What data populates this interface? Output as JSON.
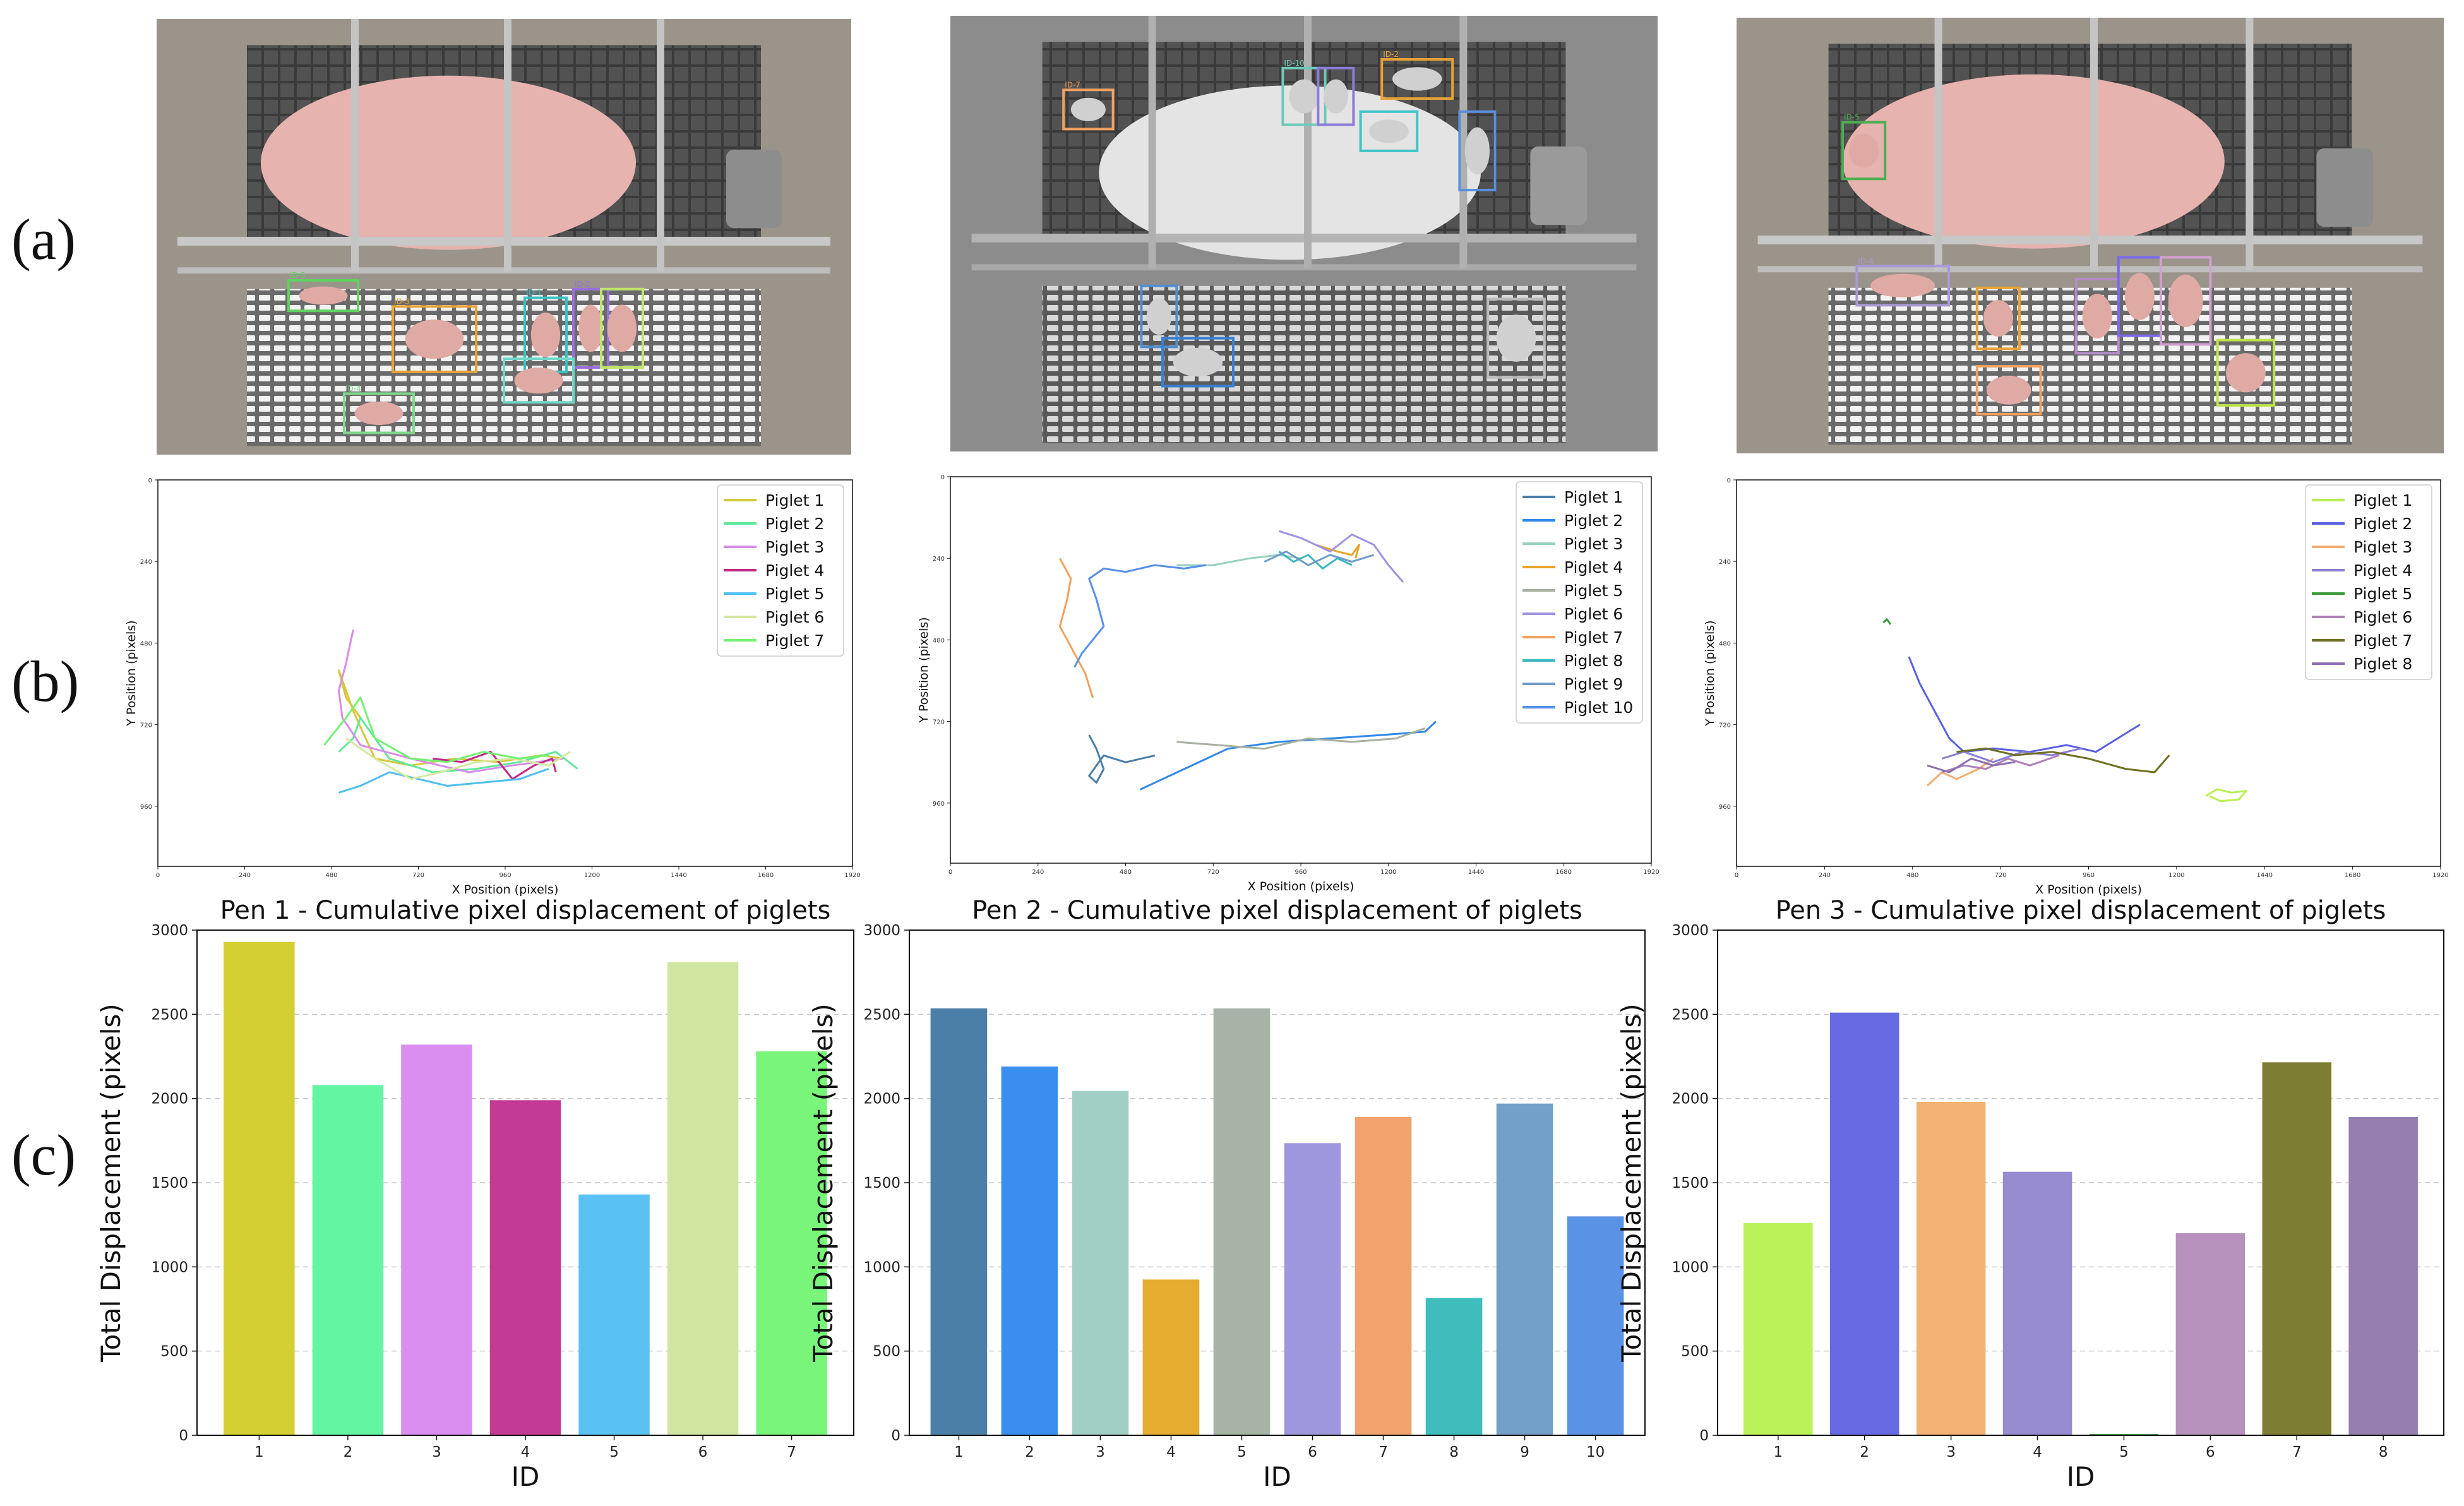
{
  "row_labels": {
    "a": "(a)",
    "b": "(b)",
    "c": "(c)"
  },
  "pens": [
    {
      "photo": {
        "style": "color",
        "detection_labels": [
          "ID-5",
          "ID-3",
          "ID-4",
          "ID-1",
          "ID-2"
        ],
        "box_colors": [
          "#5fd35f",
          "#e8a235",
          "#7ed88a",
          "#36c2c2",
          "#9b6fe0",
          "#c0e36a",
          "#6fd8c8"
        ]
      }
    },
    {
      "photo": {
        "style": "grayscale",
        "detection_labels": [
          "ID-7",
          "ID-2",
          "ID-10"
        ],
        "box_colors": [
          "#f0a060",
          "#e8a235",
          "#6fc9b9",
          "#8c7cd8",
          "#3ec3c8",
          "#5a8fe0",
          "#4f8fd0",
          "#3a7fd0",
          "#bbbbbb"
        ]
      }
    },
    {
      "photo": {
        "style": "color",
        "detection_labels": [
          "ID-5",
          "ID-4"
        ],
        "box_colors": [
          "#4caf50",
          "#a89ad6",
          "#e8a235",
          "#b58cc8",
          "#7b68ee",
          "#d2a0d0",
          "#bfe34a",
          "#f0a060"
        ]
      }
    }
  ],
  "trajectory_axes": {
    "xlabel": "X Position (pixels)",
    "ylabel": "Y Position (pixels)",
    "xticks": [
      "0",
      "240",
      "480",
      "720",
      "960",
      "1200",
      "1440",
      "1680",
      "1920"
    ],
    "yticks": [
      "0",
      "240",
      "480",
      "720",
      "960"
    ],
    "xlim": [
      0,
      1920
    ],
    "ylim": [
      1080,
      0
    ]
  },
  "chart_data": [
    {
      "type": "line",
      "panel": "(b) pen 1",
      "series": [
        {
          "name": "Piglet 1",
          "color": "#d4c83a",
          "x": [
            560,
            520,
            500,
            540,
            600,
            700,
            820,
            940,
            1060,
            1120
          ],
          "y": [
            700,
            640,
            560,
            680,
            820,
            840,
            820,
            830,
            810,
            820
          ]
        },
        {
          "name": "Piglet 2",
          "color": "#5fe89a",
          "x": [
            500,
            540,
            560,
            640,
            760,
            880,
            1000,
            1100,
            1160
          ],
          "y": [
            800,
            760,
            700,
            820,
            860,
            850,
            830,
            800,
            850
          ]
        },
        {
          "name": "Piglet 3",
          "color": "#d98be8",
          "x": [
            540,
            520,
            500,
            510,
            560,
            700,
            860,
            980,
            1120
          ],
          "y": [
            440,
            540,
            620,
            700,
            780,
            820,
            860,
            840,
            820
          ]
        },
        {
          "name": "Piglet 4",
          "color": "#c02a8a",
          "x": [
            760,
            840,
            920,
            980,
            1040,
            1090,
            1100
          ],
          "y": [
            820,
            830,
            800,
            880,
            840,
            820,
            860
          ]
        },
        {
          "name": "Piglet 5",
          "color": "#4fbfef",
          "x": [
            500,
            560,
            640,
            720,
            800,
            900,
            1000,
            1080
          ],
          "y": [
            920,
            900,
            860,
            880,
            900,
            890,
            880,
            850
          ]
        },
        {
          "name": "Piglet 6",
          "color": "#d4e8a0",
          "x": [
            520,
            600,
            700,
            780,
            880,
            980,
            1080,
            1140
          ],
          "y": [
            760,
            820,
            880,
            860,
            830,
            820,
            840,
            800
          ]
        },
        {
          "name": "Piglet 7",
          "color": "#74f074",
          "x": [
            460,
            520,
            560,
            600,
            700,
            800,
            900,
            1000,
            1080
          ],
          "y": [
            780,
            700,
            640,
            760,
            820,
            830,
            800,
            820,
            810
          ]
        }
      ]
    },
    {
      "type": "line",
      "panel": "(b) pen 2",
      "series": [
        {
          "name": "Piglet 1",
          "color": "#4a7fa8",
          "x": [
            380,
            400,
            420,
            400,
            380,
            420,
            480,
            560
          ],
          "y": [
            760,
            800,
            860,
            900,
            880,
            820,
            840,
            820
          ]
        },
        {
          "name": "Piglet 2",
          "color": "#2f88e8",
          "x": [
            520,
            640,
            760,
            900,
            1040,
            1180,
            1300,
            1330
          ],
          "y": [
            920,
            860,
            800,
            780,
            770,
            760,
            750,
            720
          ]
        },
        {
          "name": "Piglet 3",
          "color": "#98d0c0",
          "x": [
            620,
            720,
            820,
            900,
            960
          ],
          "y": [
            260,
            260,
            240,
            230,
            240
          ]
        },
        {
          "name": "Piglet 4",
          "color": "#e6a52a",
          "x": [
            1000,
            1060,
            1100,
            1120,
            1110
          ],
          "y": [
            200,
            220,
            230,
            200,
            240
          ]
        },
        {
          "name": "Piglet 5",
          "color": "#a8b0a0",
          "x": [
            620,
            740,
            860,
            980,
            1100,
            1220,
            1300
          ],
          "y": [
            780,
            790,
            800,
            770,
            780,
            770,
            740
          ]
        },
        {
          "name": "Piglet 6",
          "color": "#a092e0",
          "x": [
            900,
            960,
            1040,
            1100,
            1160,
            1200,
            1240
          ],
          "y": [
            160,
            180,
            220,
            170,
            200,
            260,
            310
          ]
        },
        {
          "name": "Piglet 7",
          "color": "#f0a060",
          "x": [
            300,
            330,
            320,
            300,
            340,
            370,
            390
          ],
          "y": [
            240,
            300,
            360,
            440,
            520,
            580,
            650
          ]
        },
        {
          "name": "Piglet 8",
          "color": "#3bb8c0",
          "x": [
            900,
            940,
            980,
            1020,
            1060,
            1100
          ],
          "y": [
            220,
            250,
            230,
            270,
            240,
            260
          ]
        },
        {
          "name": "Piglet 9",
          "color": "#6e9cc8",
          "x": [
            860,
            920,
            980,
            1040,
            1100,
            1160
          ],
          "y": [
            250,
            220,
            260,
            230,
            250,
            230
          ]
        },
        {
          "name": "Piglet 10",
          "color": "#5590e8",
          "x": [
            340,
            360,
            420,
            400,
            380,
            420,
            480,
            560,
            640,
            700
          ],
          "y": [
            560,
            520,
            440,
            360,
            300,
            270,
            280,
            260,
            270,
            260
          ]
        }
      ]
    },
    {
      "type": "line",
      "panel": "(b) pen 3",
      "series": [
        {
          "name": "Piglet 1",
          "color": "#b8f050",
          "x": [
            1280,
            1310,
            1350,
            1390,
            1370,
            1320,
            1290
          ],
          "y": [
            930,
            910,
            920,
            915,
            940,
            945,
            930
          ]
        },
        {
          "name": "Piglet 2",
          "color": "#5a60e0",
          "x": [
            470,
            500,
            540,
            580,
            620,
            700,
            800,
            900,
            980,
            1040,
            1100
          ],
          "y": [
            520,
            600,
            680,
            760,
            800,
            790,
            800,
            780,
            800,
            760,
            720
          ]
        },
        {
          "name": "Piglet 3",
          "color": "#f2ad70",
          "x": [
            520,
            560,
            600,
            660,
            700
          ],
          "y": [
            900,
            860,
            880,
            850,
            820
          ]
        },
        {
          "name": "Piglet 4",
          "color": "#8a80d0",
          "x": [
            560,
            620,
            700,
            780,
            860,
            940
          ],
          "y": [
            820,
            800,
            830,
            800,
            810,
            790
          ]
        },
        {
          "name": "Piglet 5",
          "color": "#3a9a3a",
          "x": [
            400,
            410,
            420
          ],
          "y": [
            420,
            410,
            425
          ]
        },
        {
          "name": "Piglet 6",
          "color": "#b080b8",
          "x": [
            560,
            620,
            680,
            740,
            800,
            880
          ],
          "y": [
            860,
            840,
            850,
            820,
            840,
            810
          ]
        },
        {
          "name": "Piglet 7",
          "color": "#6f6f22",
          "x": [
            600,
            680,
            760,
            860,
            960,
            1060,
            1140,
            1180
          ],
          "y": [
            800,
            790,
            810,
            800,
            820,
            850,
            860,
            810
          ]
        },
        {
          "name": "Piglet 8",
          "color": "#8b6fb0",
          "x": [
            520,
            580,
            640,
            700,
            760
          ],
          "y": [
            840,
            860,
            820,
            840,
            830
          ]
        }
      ]
    },
    {
      "type": "bar",
      "title": "Pen 1 - Cumulative pixel displacement of piglets",
      "xlabel": "ID",
      "ylabel": "Total Displacement (pixels)",
      "ylim": [
        0,
        3000
      ],
      "yticks": [
        "0",
        "500",
        "1000",
        "1500",
        "2000",
        "2500",
        "3000"
      ],
      "categories": [
        "1",
        "2",
        "3",
        "4",
        "5",
        "6",
        "7"
      ],
      "values": [
        2930,
        2080,
        2320,
        1990,
        1430,
        2810,
        2280
      ],
      "colors": [
        "#d4d033",
        "#63f5a2",
        "#d98ef0",
        "#c23a94",
        "#5ac2f2",
        "#d0e6a0",
        "#79f57a"
      ],
      "grid": "horizontal dashed"
    },
    {
      "type": "bar",
      "title": "Pen 2 - Cumulative pixel displacement of piglets",
      "xlabel": "ID",
      "ylabel": "Total Displacement (pixels)",
      "ylim": [
        0,
        3000
      ],
      "yticks": [
        "0",
        "500",
        "1000",
        "1500",
        "2000",
        "2500",
        "3000"
      ],
      "categories": [
        "1",
        "2",
        "3",
        "4",
        "5",
        "6",
        "7",
        "8",
        "9",
        "10"
      ],
      "values": [
        2535,
        2190,
        2045,
        925,
        2535,
        1735,
        1890,
        815,
        1970,
        1300
      ],
      "colors": [
        "#4c7fa8",
        "#3a8ef0",
        "#a0d0c4",
        "#e6ac30",
        "#a7b3a6",
        "#9f97dd",
        "#f2a26c",
        "#3fbdbd",
        "#73a0c6",
        "#5a92e6"
      ],
      "grid": "horizontal dashed"
    },
    {
      "type": "bar",
      "title": "Pen 3 - Cumulative pixel displacement of piglets",
      "xlabel": "ID",
      "ylabel": "Total Displacement (pixels)",
      "ylim": [
        0,
        3000
      ],
      "yticks": [
        "0",
        "500",
        "1000",
        "1500",
        "2000",
        "2500",
        "3000"
      ],
      "categories": [
        "1",
        "2",
        "3",
        "4",
        "5",
        "6",
        "7",
        "8"
      ],
      "values": [
        1260,
        2510,
        1980,
        1565,
        8,
        1200,
        2215,
        1890
      ],
      "colors": [
        "#bbf25a",
        "#676ae2",
        "#f2b274",
        "#968bcf",
        "#5aa05a",
        "#b692bc",
        "#7d7d33",
        "#967fb0"
      ],
      "grid": "horizontal dashed"
    }
  ]
}
